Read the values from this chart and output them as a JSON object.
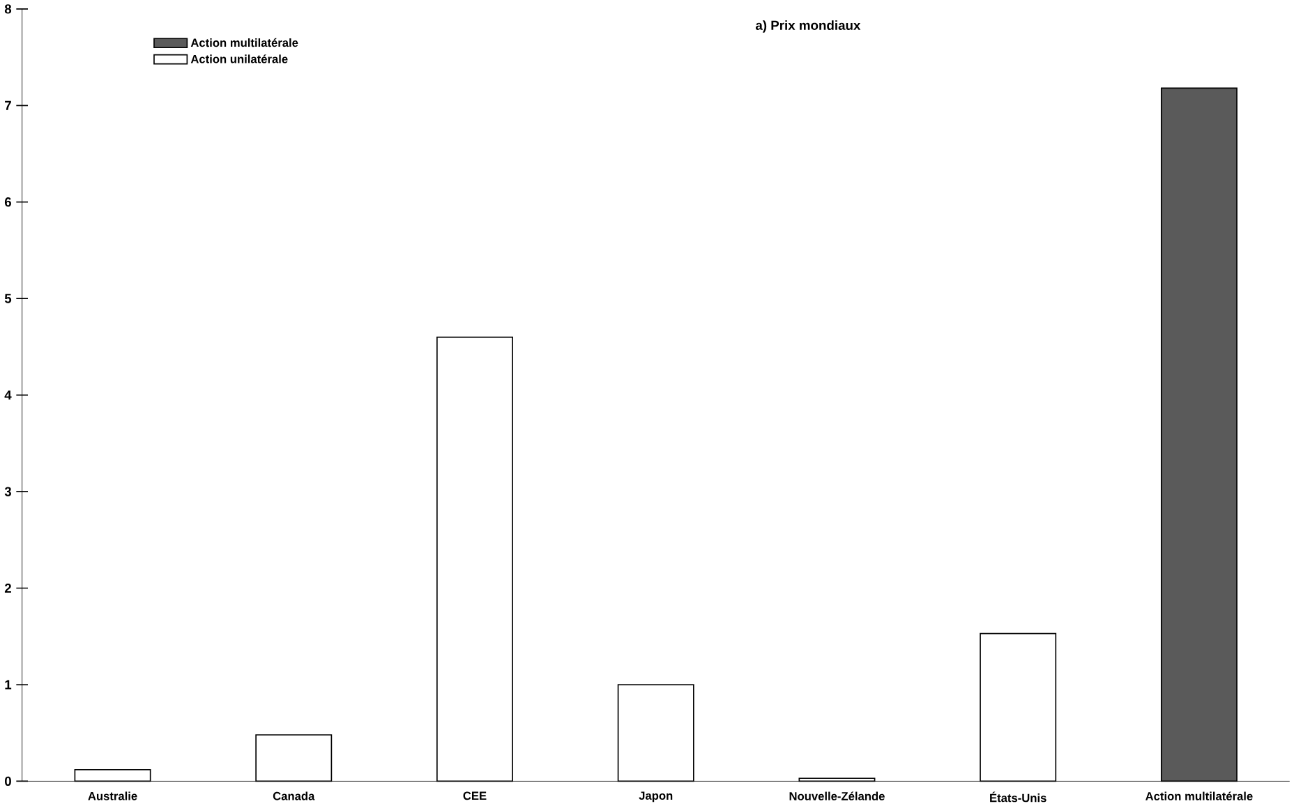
{
  "chart_data": {
    "type": "bar",
    "title": "a)  Prix mondiaux",
    "categories": [
      "Australie",
      "Canada",
      "CEE",
      "Japon",
      "Nouvelle-Zélande",
      "États-Unis",
      "Action multilatérale"
    ],
    "series": [
      {
        "name": "Action multilatérale",
        "color": "#5a5a5a",
        "values": [
          null,
          null,
          null,
          null,
          null,
          null,
          7.18
        ]
      },
      {
        "name": "Action unilatérale",
        "color": "#ffffff",
        "values": [
          0.12,
          0.48,
          4.6,
          1.0,
          0.03,
          1.53,
          null
        ]
      }
    ],
    "ylim": [
      0,
      8
    ],
    "yticks": [
      0,
      1,
      2,
      3,
      4,
      5,
      6,
      7,
      8
    ],
    "grid": false,
    "legend": "top left"
  }
}
